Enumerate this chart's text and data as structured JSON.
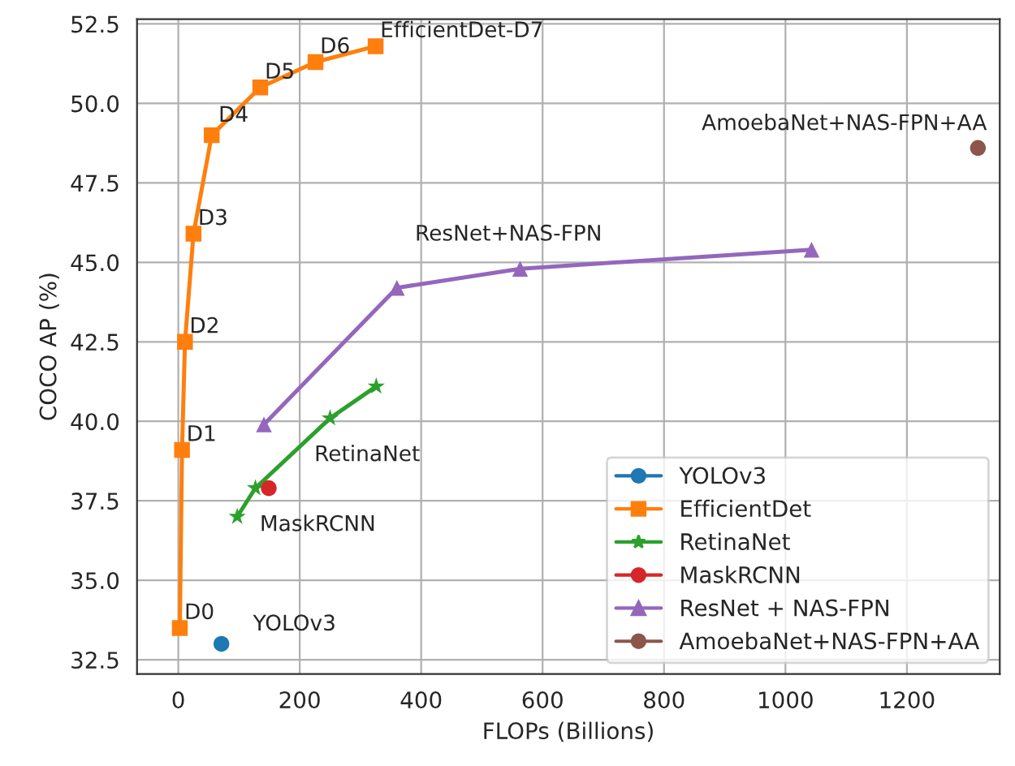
{
  "chart_data": {
    "type": "line",
    "xlabel": "FLOPs (Billions)",
    "ylabel": "COCO AP (%)",
    "xlim": [
      -68,
      1353
    ],
    "ylim": [
      32.05,
      52.65
    ],
    "xticks": [
      0,
      200,
      400,
      600,
      800,
      1000,
      1200
    ],
    "yticks": [
      {
        "value": 32.5,
        "label": "32.5"
      },
      {
        "value": 35,
        "label": "35.0"
      },
      {
        "value": 37.5,
        "label": "37.5"
      },
      {
        "value": 40,
        "label": "40.0"
      },
      {
        "value": 42.5,
        "label": "42.5"
      },
      {
        "value": 45,
        "label": "45.0"
      },
      {
        "value": 47.5,
        "label": "47.5"
      },
      {
        "value": 50,
        "label": "50.0"
      },
      {
        "value": 52.5,
        "label": "52.5"
      }
    ],
    "grid": true,
    "legend": "bottom right",
    "series": [
      {
        "name": "YOLOv3",
        "color": "#1f77b4",
        "marker": "circle",
        "x": [
          71
        ],
        "values": [
          33.0
        ]
      },
      {
        "name": "EfficientDet",
        "color": "#ff7f0e",
        "marker": "square",
        "x": [
          2.5,
          6.1,
          11,
          25,
          55,
          135,
          226,
          325
        ],
        "values": [
          33.5,
          39.1,
          42.5,
          45.9,
          49.0,
          50.5,
          51.3,
          51.8
        ]
      },
      {
        "name": "RetinaNet",
        "color": "#2ca02c",
        "marker": "star",
        "x": [
          97,
          127,
          250,
          326
        ],
        "values": [
          37.0,
          37.9,
          40.1,
          41.1
        ]
      },
      {
        "name": "MaskRCNN",
        "color": "#d62728",
        "marker": "circle",
        "x": [
          149
        ],
        "values": [
          37.9
        ]
      },
      {
        "name": "ResNet + NAS-FPN",
        "color": "#9467bd",
        "marker": "triangle",
        "x": [
          141,
          360,
          563,
          1043
        ],
        "values": [
          39.9,
          44.2,
          44.8,
          45.4
        ]
      },
      {
        "name": "AmoebaNet+NAS-FPN+AA",
        "color": "#8c564b",
        "marker": "circle",
        "x": [
          1317
        ],
        "values": [
          48.6
        ]
      }
    ],
    "annotations": [
      {
        "text": "D0",
        "x": 2.5,
        "y": 33.5
      },
      {
        "text": "D1",
        "x": 6.1,
        "y": 39.1
      },
      {
        "text": "D2",
        "x": 11,
        "y": 42.5
      },
      {
        "text": "D3",
        "x": 25,
        "y": 45.9
      },
      {
        "text": "D4",
        "x": 55,
        "y": 49.0
      },
      {
        "text": "D5",
        "x": 135,
        "y": 50.5
      },
      {
        "text": "D6",
        "x": 226,
        "y": 51.3
      },
      {
        "text": "EfficientDet-D7",
        "x": 325,
        "y": 51.8
      },
      {
        "text": "YOLOv3",
        "x": 71,
        "y": 33.0
      },
      {
        "text": "RetinaNet",
        "x": 250,
        "y": 40.1
      },
      {
        "text": "MaskRCNN",
        "x": 149,
        "y": 37.9
      },
      {
        "text": "ResNet+NAS-FPN",
        "x": 360,
        "y": 44.2
      },
      {
        "text": "AmoebaNet+NAS-FPN+AA",
        "x": 1317,
        "y": 48.6
      }
    ]
  }
}
